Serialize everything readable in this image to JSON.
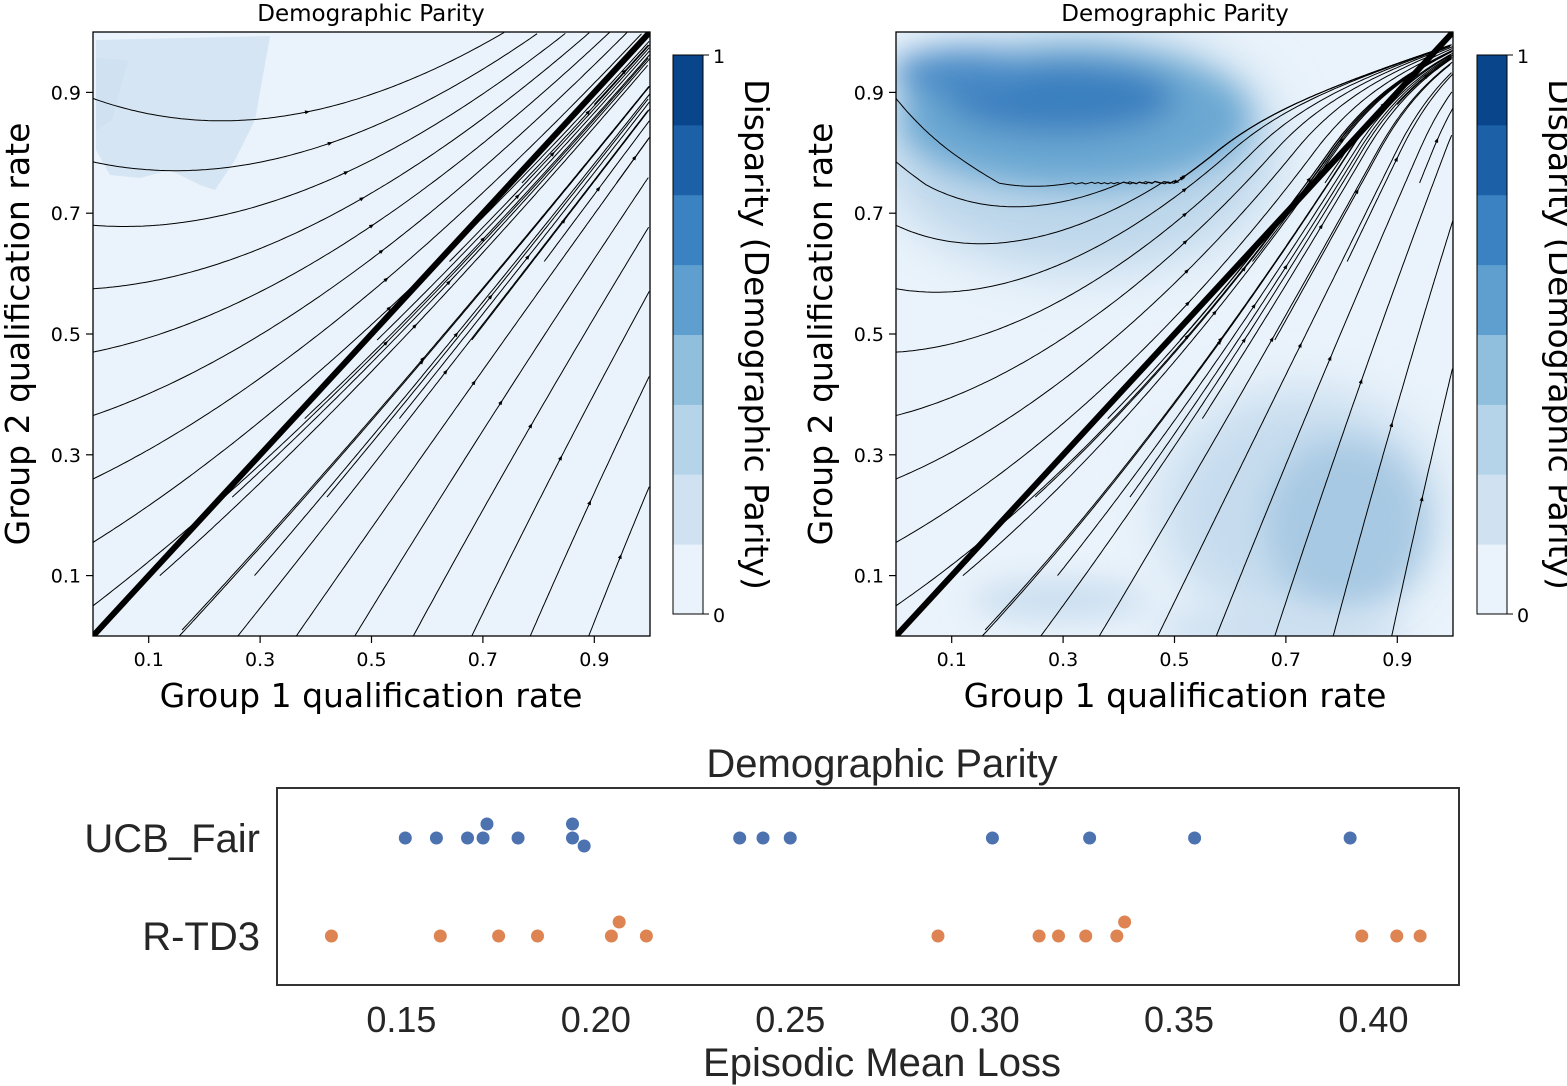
{
  "figure": {
    "title": "Demographic Parity"
  },
  "chart_data": [
    {
      "type": "heatmap",
      "subtype": "contour-with-streamlines",
      "title": "Demographic Parity",
      "xlabel": "Group 1 qualification rate",
      "ylabel": "Group 2 qualification rate",
      "xlim": [
        0,
        1
      ],
      "ylim": [
        0,
        1
      ],
      "xticks": [
        "0.1",
        "0.3",
        "0.5",
        "0.7",
        "0.9"
      ],
      "yticks": [
        "0.1",
        "0.3",
        "0.5",
        "0.7",
        "0.9"
      ],
      "colorbar": {
        "label": "Disparity (Demographic Parity)",
        "min": 0,
        "max": 1,
        "min_label": "0",
        "max_label": "1"
      },
      "diagonal": [
        [
          0,
          0
        ],
        [
          1,
          1
        ]
      ],
      "high_disparity_regions": [
        {
          "center": [
            0.12,
            0.85
          ],
          "level": 0.15
        }
      ]
    },
    {
      "type": "heatmap",
      "subtype": "contour-with-streamlines",
      "title": "Demographic Parity",
      "xlabel": "Group 1 qualification rate",
      "ylabel": "Group 2 qualification rate",
      "xlim": [
        0,
        1
      ],
      "ylim": [
        0,
        1
      ],
      "xticks": [
        "0.1",
        "0.3",
        "0.5",
        "0.7",
        "0.9"
      ],
      "yticks": [
        "0.1",
        "0.3",
        "0.5",
        "0.7",
        "0.9"
      ],
      "colorbar": {
        "label": "Disparity (Demographic Parity)",
        "min": 0,
        "max": 1,
        "min_label": "0",
        "max_label": "1"
      },
      "diagonal": [
        [
          0,
          0
        ],
        [
          1,
          1
        ]
      ],
      "high_disparity_regions": [
        {
          "center": [
            0.3,
            0.87
          ],
          "level": 0.75
        },
        {
          "center": [
            0.8,
            0.22
          ],
          "level": 0.4
        },
        {
          "center": [
            0.35,
            0.1
          ],
          "level": 0.2
        }
      ]
    },
    {
      "type": "scatter",
      "subtype": "strip",
      "title": "Demographic Parity",
      "xlabel": "Episodic Mean Loss",
      "ylabel": "",
      "xlim": [
        0.118,
        0.422
      ],
      "xticks": [
        "0.15",
        "0.20",
        "0.25",
        "0.30",
        "0.35",
        "0.40"
      ],
      "categories": [
        "UCB_Fair",
        "R-TD3"
      ],
      "series": [
        {
          "name": "UCB_Fair",
          "color": "#4c72b0",
          "values": [
            0.151,
            0.159,
            0.167,
            0.171,
            0.172,
            0.18,
            0.194,
            0.194,
            0.197,
            0.237,
            0.243,
            0.25,
            0.302,
            0.327,
            0.354,
            0.394
          ]
        },
        {
          "name": "R-TD3",
          "color": "#dd8452",
          "values": [
            0.132,
            0.16,
            0.175,
            0.185,
            0.204,
            0.206,
            0.213,
            0.288,
            0.314,
            0.319,
            0.326,
            0.334,
            0.336,
            0.397,
            0.406,
            0.412
          ]
        }
      ]
    }
  ]
}
